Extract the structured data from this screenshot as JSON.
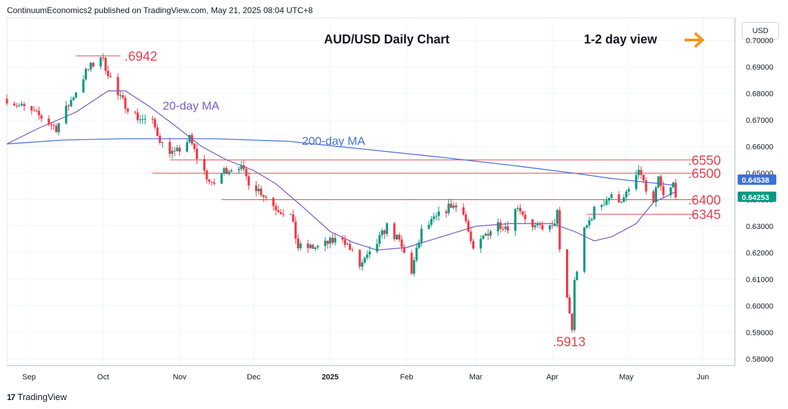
{
  "header": {
    "publisher_line": "ContinuumEconomics2 published on TradingView.com, May 21, 2025 08:04 UTC+8"
  },
  "footer": {
    "brand": "TradingView",
    "logo_text": "17"
  },
  "price_axis": {
    "currency": "USD"
  },
  "colors": {
    "up": "#089981",
    "down": "#f23645",
    "ma20": "#7b5fc2",
    "ma200": "#4a70d8",
    "level_line": "#e5404f",
    "label_red": "#e5404f",
    "orange_arrow": "#f7931e",
    "current_price_bg": "#089981",
    "ma_price_bg": "#3d6fd6"
  },
  "chart_data": {
    "type": "candlestick",
    "title": "AUD/USD Daily Chart",
    "subtitle": "1-2 day view",
    "ylim": [
      0.5775,
      0.7085
    ],
    "y_ticks": [
      0.58,
      0.59,
      0.6,
      0.61,
      0.62,
      0.63,
      0.64,
      0.65,
      0.66,
      0.67,
      0.68,
      0.69,
      0.7
    ],
    "y_tick_labels": [
      "0.58000",
      "0.59000",
      "0.60000",
      "0.61000",
      "0.62000",
      "0.63000",
      "0.64000",
      "0.65000",
      "0.66000",
      "0.67000",
      "0.68000",
      "0.69000",
      "0.70000"
    ],
    "x_ticks": [
      {
        "label": "Sep",
        "date": "2024-09-01",
        "bold": false
      },
      {
        "label": "Oct",
        "date": "2024-10-01",
        "bold": false
      },
      {
        "label": "Nov",
        "date": "2024-11-01",
        "bold": false
      },
      {
        "label": "Dec",
        "date": "2024-12-01",
        "bold": false
      },
      {
        "label": "2025",
        "date": "2025-01-01",
        "bold": true
      },
      {
        "label": "Feb",
        "date": "2025-02-01",
        "bold": false
      },
      {
        "label": "Mar",
        "date": "2025-03-01",
        "bold": false
      },
      {
        "label": "Apr",
        "date": "2025-04-01",
        "bold": false
      },
      {
        "label": "May",
        "date": "2025-05-01",
        "bold": false
      },
      {
        "label": "Jun",
        "date": "2025-06-01",
        "bold": false
      }
    ],
    "x_range": [
      "2024-08-23",
      "2025-06-14"
    ],
    "annotations": {
      "ma20_label": "20-day MA",
      "ma200_label": "200-day MA",
      "levels": [
        {
          "label": ".6942",
          "value": 0.6942,
          "from": "2024-09-20",
          "to": "2024-10-08"
        },
        {
          "label": ".6550",
          "value": 0.655,
          "from": "2024-10-28",
          "to": "2025-05-29"
        },
        {
          "label": ".6500",
          "value": 0.65,
          "from": "2024-10-21",
          "to": "2025-05-29"
        },
        {
          "label": ".6400",
          "value": 0.64,
          "from": "2024-11-18",
          "to": "2025-05-29"
        },
        {
          "label": ".6345",
          "value": 0.6345,
          "from": "2025-04-15",
          "to": "2025-05-29"
        },
        {
          "label": ".5913",
          "value": 0.5913,
          "from": null,
          "to": null
        }
      ]
    },
    "current_price": {
      "value": 0.64253,
      "label": "0.64253"
    },
    "ma200_price": {
      "value": 0.64538,
      "label": "0.64538"
    },
    "key_points": [
      {
        "date": "2024-08-23",
        "close": 0.678
      },
      {
        "date": "2024-09-06",
        "close": 0.671
      },
      {
        "date": "2024-09-12",
        "close": 0.667
      },
      {
        "date": "2024-09-20",
        "close": 0.681
      },
      {
        "date": "2024-09-24",
        "close": 0.688
      },
      {
        "date": "2024-09-30",
        "close": 0.6942
      },
      {
        "date": "2024-10-03",
        "close": 0.688
      },
      {
        "date": "2024-10-07",
        "close": 0.679
      },
      {
        "date": "2024-10-15",
        "close": 0.671
      },
      {
        "date": "2024-10-21",
        "close": 0.669
      },
      {
        "date": "2024-10-25",
        "close": 0.661
      },
      {
        "date": "2024-10-30",
        "close": 0.657
      },
      {
        "date": "2024-11-05",
        "close": 0.663
      },
      {
        "date": "2024-11-08",
        "close": 0.656
      },
      {
        "date": "2024-11-14",
        "close": 0.645
      },
      {
        "date": "2024-11-19",
        "close": 0.651
      },
      {
        "date": "2024-11-25",
        "close": 0.653
      },
      {
        "date": "2024-11-29",
        "close": 0.647
      },
      {
        "date": "2024-12-04",
        "close": 0.643
      },
      {
        "date": "2024-12-10",
        "close": 0.637
      },
      {
        "date": "2024-12-16",
        "close": 0.634
      },
      {
        "date": "2024-12-19",
        "close": 0.622
      },
      {
        "date": "2024-12-27",
        "close": 0.622
      },
      {
        "date": "2025-01-06",
        "close": 0.626
      },
      {
        "date": "2025-01-13",
        "close": 0.615
      },
      {
        "date": "2025-01-17",
        "close": 0.619
      },
      {
        "date": "2025-01-24",
        "close": 0.63
      },
      {
        "date": "2025-01-29",
        "close": 0.624
      },
      {
        "date": "2025-02-03",
        "close": 0.613
      },
      {
        "date": "2025-02-07",
        "close": 0.628
      },
      {
        "date": "2025-02-14",
        "close": 0.634
      },
      {
        "date": "2025-02-19",
        "close": 0.638
      },
      {
        "date": "2025-02-24",
        "close": 0.636
      },
      {
        "date": "2025-02-28",
        "close": 0.62
      },
      {
        "date": "2025-03-05",
        "close": 0.627
      },
      {
        "date": "2025-03-10",
        "close": 0.631
      },
      {
        "date": "2025-03-14",
        "close": 0.63
      },
      {
        "date": "2025-03-18",
        "close": 0.638
      },
      {
        "date": "2025-03-24",
        "close": 0.629
      },
      {
        "date": "2025-03-28",
        "close": 0.63
      },
      {
        "date": "2025-04-01",
        "close": 0.629
      },
      {
        "date": "2025-04-03",
        "close": 0.635
      },
      {
        "date": "2025-04-04",
        "close": 0.62
      },
      {
        "date": "2025-04-07",
        "close": 0.603
      },
      {
        "date": "2025-04-08",
        "close": 0.597
      },
      {
        "date": "2025-04-09",
        "close": 0.5913
      },
      {
        "date": "2025-04-10",
        "close": 0.609
      },
      {
        "date": "2025-04-14",
        "close": 0.628
      },
      {
        "date": "2025-04-18",
        "close": 0.636
      },
      {
        "date": "2025-04-24",
        "close": 0.641
      },
      {
        "date": "2025-04-30",
        "close": 0.64
      },
      {
        "date": "2025-05-05",
        "close": 0.649
      },
      {
        "date": "2025-05-07",
        "close": 0.65
      },
      {
        "date": "2025-05-09",
        "close": 0.643
      },
      {
        "date": "2025-05-12",
        "close": 0.638
      },
      {
        "date": "2025-05-14",
        "close": 0.648
      },
      {
        "date": "2025-05-16",
        "close": 0.641
      },
      {
        "date": "2025-05-19",
        "close": 0.644
      },
      {
        "date": "2025-05-20",
        "close": 0.646
      },
      {
        "date": "2025-05-21",
        "close": 0.64253
      }
    ],
    "ma20_points": [
      {
        "date": "2024-08-23",
        "value": 0.661
      },
      {
        "date": "2024-09-05",
        "value": 0.667
      },
      {
        "date": "2024-09-20",
        "value": 0.673
      },
      {
        "date": "2024-10-03",
        "value": 0.681
      },
      {
        "date": "2024-10-10",
        "value": 0.681
      },
      {
        "date": "2024-10-20",
        "value": 0.675
      },
      {
        "date": "2024-10-30",
        "value": 0.668
      },
      {
        "date": "2024-11-10",
        "value": 0.66
      },
      {
        "date": "2024-11-20",
        "value": 0.655
      },
      {
        "date": "2024-12-01",
        "value": 0.651
      },
      {
        "date": "2024-12-10",
        "value": 0.646
      },
      {
        "date": "2024-12-20",
        "value": 0.638
      },
      {
        "date": "2025-01-01",
        "value": 0.628
      },
      {
        "date": "2025-01-10",
        "value": 0.624
      },
      {
        "date": "2025-01-20",
        "value": 0.621
      },
      {
        "date": "2025-02-01",
        "value": 0.622
      },
      {
        "date": "2025-02-15",
        "value": 0.626
      },
      {
        "date": "2025-03-01",
        "value": 0.63
      },
      {
        "date": "2025-03-15",
        "value": 0.631
      },
      {
        "date": "2025-04-01",
        "value": 0.631
      },
      {
        "date": "2025-04-10",
        "value": 0.628
      },
      {
        "date": "2025-04-18",
        "value": 0.6245
      },
      {
        "date": "2025-04-25",
        "value": 0.626
      },
      {
        "date": "2025-05-05",
        "value": 0.631
      },
      {
        "date": "2025-05-12",
        "value": 0.639
      },
      {
        "date": "2025-05-21",
        "value": 0.643
      }
    ],
    "ma200_points": [
      {
        "date": "2024-08-23",
        "value": 0.661
      },
      {
        "date": "2024-09-15",
        "value": 0.6625
      },
      {
        "date": "2024-10-10",
        "value": 0.663
      },
      {
        "date": "2024-11-15",
        "value": 0.663
      },
      {
        "date": "2024-12-15",
        "value": 0.662
      },
      {
        "date": "2025-01-15",
        "value": 0.659
      },
      {
        "date": "2025-02-15",
        "value": 0.656
      },
      {
        "date": "2025-03-15",
        "value": 0.653
      },
      {
        "date": "2025-04-10",
        "value": 0.65
      },
      {
        "date": "2025-04-25",
        "value": 0.648
      },
      {
        "date": "2025-05-21",
        "value": 0.6454
      }
    ]
  }
}
